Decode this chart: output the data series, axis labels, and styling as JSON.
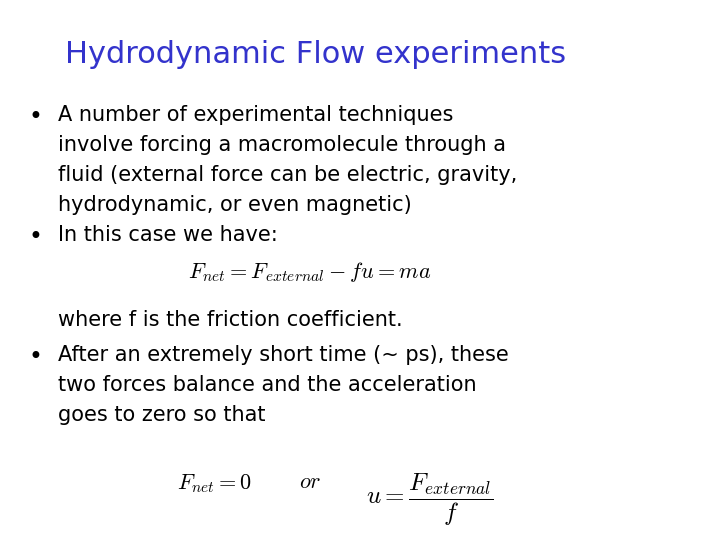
{
  "title": "Hydrodynamic Flow experiments",
  "title_color": "#3333cc",
  "title_fontsize": 22,
  "background_color": "#ffffff",
  "text_color": "#000000",
  "bullet1_lines": [
    "A number of experimental techniques",
    "involve forcing a macromolecule through a",
    "fluid (external force can be electric, gravity,",
    "hydrodynamic, or even magnetic)"
  ],
  "bullet2_line": "In this case we have:",
  "formula1": "$F_{net} = F_{external} - fu = ma$",
  "where_line": "where f is the friction coefficient.",
  "bullet3_lines": [
    "After an extremely short time (~ ps), these",
    "two forces balance and the acceleration",
    "goes to zero so that"
  ],
  "formula2a": "$F_{net} = 0$",
  "formula2b": "$or$",
  "formula2c": "$u = \\dfrac{F_{external}}{f}$",
  "body_fontsize": 15,
  "formula_fontsize": 15
}
